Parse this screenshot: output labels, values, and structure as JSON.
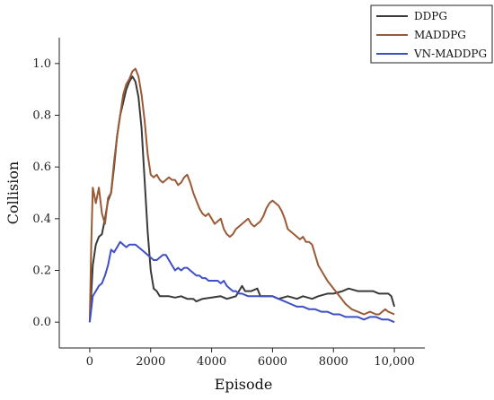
{
  "chart_data": {
    "type": "line",
    "xlabel": "Episode",
    "ylabel": "Collision",
    "xlim": [
      -1000,
      11000
    ],
    "ylim": [
      -0.1,
      1.1
    ],
    "x_ticks": [
      {
        "value": 0,
        "label": "0"
      },
      {
        "value": 2000,
        "label": "2000"
      },
      {
        "value": 4000,
        "label": "4000"
      },
      {
        "value": 6000,
        "label": "6000"
      },
      {
        "value": 8000,
        "label": "8000"
      },
      {
        "value": 10000,
        "label": "10,000"
      }
    ],
    "y_ticks": [
      {
        "value": 0.0,
        "label": "0.0"
      },
      {
        "value": 0.2,
        "label": "0.2"
      },
      {
        "value": 0.4,
        "label": "0.4"
      },
      {
        "value": 0.6,
        "label": "0.6"
      },
      {
        "value": 0.8,
        "label": "0.8"
      },
      {
        "value": 1.0,
        "label": "1.0"
      }
    ],
    "grid": false,
    "legend_position": "top-right",
    "series": [
      {
        "name": "DDPG",
        "color": "#3a3a3a",
        "points": [
          [
            0,
            0.0
          ],
          [
            100,
            0.22
          ],
          [
            200,
            0.3
          ],
          [
            300,
            0.33
          ],
          [
            400,
            0.34
          ],
          [
            500,
            0.4
          ],
          [
            600,
            0.47
          ],
          [
            700,
            0.5
          ],
          [
            800,
            0.6
          ],
          [
            900,
            0.72
          ],
          [
            1000,
            0.8
          ],
          [
            1100,
            0.85
          ],
          [
            1200,
            0.9
          ],
          [
            1300,
            0.93
          ],
          [
            1400,
            0.95
          ],
          [
            1500,
            0.93
          ],
          [
            1600,
            0.87
          ],
          [
            1700,
            0.75
          ],
          [
            1800,
            0.55
          ],
          [
            1900,
            0.35
          ],
          [
            2000,
            0.2
          ],
          [
            2100,
            0.13
          ],
          [
            2200,
            0.12
          ],
          [
            2300,
            0.1
          ],
          [
            2400,
            0.1
          ],
          [
            2600,
            0.1
          ],
          [
            2800,
            0.095
          ],
          [
            3000,
            0.1
          ],
          [
            3200,
            0.09
          ],
          [
            3400,
            0.09
          ],
          [
            3500,
            0.08
          ],
          [
            3700,
            0.09
          ],
          [
            4000,
            0.095
          ],
          [
            4300,
            0.1
          ],
          [
            4500,
            0.09
          ],
          [
            4800,
            0.1
          ],
          [
            5000,
            0.14
          ],
          [
            5100,
            0.12
          ],
          [
            5300,
            0.12
          ],
          [
            5500,
            0.13
          ],
          [
            5600,
            0.1
          ],
          [
            5800,
            0.1
          ],
          [
            6000,
            0.1
          ],
          [
            6200,
            0.09
          ],
          [
            6500,
            0.1
          ],
          [
            6800,
            0.09
          ],
          [
            7000,
            0.1
          ],
          [
            7300,
            0.09
          ],
          [
            7500,
            0.1
          ],
          [
            7800,
            0.11
          ],
          [
            8000,
            0.11
          ],
          [
            8300,
            0.12
          ],
          [
            8500,
            0.13
          ],
          [
            8800,
            0.12
          ],
          [
            9000,
            0.12
          ],
          [
            9300,
            0.12
          ],
          [
            9500,
            0.11
          ],
          [
            9800,
            0.11
          ],
          [
            9900,
            0.1
          ],
          [
            10000,
            0.06
          ]
        ]
      },
      {
        "name": "MADDPG",
        "color": "#9a5a36",
        "points": [
          [
            0,
            0.0
          ],
          [
            50,
            0.3
          ],
          [
            100,
            0.52
          ],
          [
            200,
            0.46
          ],
          [
            300,
            0.52
          ],
          [
            400,
            0.42
          ],
          [
            500,
            0.38
          ],
          [
            600,
            0.48
          ],
          [
            700,
            0.5
          ],
          [
            800,
            0.62
          ],
          [
            900,
            0.72
          ],
          [
            1000,
            0.8
          ],
          [
            1100,
            0.88
          ],
          [
            1200,
            0.92
          ],
          [
            1300,
            0.94
          ],
          [
            1400,
            0.97
          ],
          [
            1500,
            0.98
          ],
          [
            1600,
            0.95
          ],
          [
            1700,
            0.88
          ],
          [
            1800,
            0.78
          ],
          [
            1900,
            0.65
          ],
          [
            2000,
            0.57
          ],
          [
            2100,
            0.56
          ],
          [
            2200,
            0.57
          ],
          [
            2300,
            0.55
          ],
          [
            2400,
            0.54
          ],
          [
            2500,
            0.55
          ],
          [
            2600,
            0.56
          ],
          [
            2700,
            0.55
          ],
          [
            2800,
            0.55
          ],
          [
            2900,
            0.53
          ],
          [
            3000,
            0.54
          ],
          [
            3100,
            0.56
          ],
          [
            3200,
            0.57
          ],
          [
            3300,
            0.54
          ],
          [
            3400,
            0.5
          ],
          [
            3500,
            0.47
          ],
          [
            3600,
            0.44
          ],
          [
            3700,
            0.42
          ],
          [
            3800,
            0.41
          ],
          [
            3900,
            0.42
          ],
          [
            4000,
            0.4
          ],
          [
            4100,
            0.38
          ],
          [
            4200,
            0.39
          ],
          [
            4300,
            0.4
          ],
          [
            4400,
            0.36
          ],
          [
            4500,
            0.34
          ],
          [
            4600,
            0.33
          ],
          [
            4700,
            0.34
          ],
          [
            4800,
            0.36
          ],
          [
            4900,
            0.37
          ],
          [
            5000,
            0.38
          ],
          [
            5100,
            0.39
          ],
          [
            5200,
            0.4
          ],
          [
            5300,
            0.38
          ],
          [
            5400,
            0.37
          ],
          [
            5500,
            0.38
          ],
          [
            5600,
            0.39
          ],
          [
            5700,
            0.41
          ],
          [
            5800,
            0.44
          ],
          [
            5900,
            0.46
          ],
          [
            6000,
            0.47
          ],
          [
            6100,
            0.46
          ],
          [
            6200,
            0.45
          ],
          [
            6300,
            0.43
          ],
          [
            6400,
            0.4
          ],
          [
            6500,
            0.36
          ],
          [
            6600,
            0.35
          ],
          [
            6700,
            0.34
          ],
          [
            6800,
            0.33
          ],
          [
            6900,
            0.32
          ],
          [
            7000,
            0.33
          ],
          [
            7100,
            0.31
          ],
          [
            7200,
            0.31
          ],
          [
            7300,
            0.3
          ],
          [
            7400,
            0.26
          ],
          [
            7500,
            0.22
          ],
          [
            7600,
            0.2
          ],
          [
            7700,
            0.18
          ],
          [
            7800,
            0.16
          ],
          [
            8000,
            0.13
          ],
          [
            8200,
            0.1
          ],
          [
            8400,
            0.07
          ],
          [
            8600,
            0.05
          ],
          [
            8800,
            0.04
          ],
          [
            9000,
            0.03
          ],
          [
            9200,
            0.04
          ],
          [
            9400,
            0.03
          ],
          [
            9500,
            0.03
          ],
          [
            9700,
            0.05
          ],
          [
            9800,
            0.04
          ],
          [
            10000,
            0.03
          ]
        ]
      },
      {
        "name": "VN-MADDPG",
        "color": "#3f4fc4",
        "points": [
          [
            0,
            0.0
          ],
          [
            100,
            0.1
          ],
          [
            200,
            0.12
          ],
          [
            300,
            0.14
          ],
          [
            400,
            0.15
          ],
          [
            500,
            0.18
          ],
          [
            600,
            0.22
          ],
          [
            700,
            0.28
          ],
          [
            800,
            0.27
          ],
          [
            900,
            0.29
          ],
          [
            1000,
            0.31
          ],
          [
            1100,
            0.3
          ],
          [
            1200,
            0.29
          ],
          [
            1300,
            0.3
          ],
          [
            1400,
            0.3
          ],
          [
            1500,
            0.3
          ],
          [
            1600,
            0.29
          ],
          [
            1700,
            0.28
          ],
          [
            1800,
            0.27
          ],
          [
            1900,
            0.26
          ],
          [
            2000,
            0.25
          ],
          [
            2100,
            0.24
          ],
          [
            2200,
            0.24
          ],
          [
            2300,
            0.25
          ],
          [
            2400,
            0.26
          ],
          [
            2500,
            0.26
          ],
          [
            2600,
            0.24
          ],
          [
            2700,
            0.22
          ],
          [
            2800,
            0.2
          ],
          [
            2900,
            0.21
          ],
          [
            3000,
            0.2
          ],
          [
            3100,
            0.21
          ],
          [
            3200,
            0.21
          ],
          [
            3300,
            0.2
          ],
          [
            3400,
            0.19
          ],
          [
            3500,
            0.18
          ],
          [
            3600,
            0.18
          ],
          [
            3700,
            0.17
          ],
          [
            3800,
            0.17
          ],
          [
            3900,
            0.16
          ],
          [
            4000,
            0.16
          ],
          [
            4100,
            0.16
          ],
          [
            4200,
            0.16
          ],
          [
            4300,
            0.15
          ],
          [
            4400,
            0.16
          ],
          [
            4500,
            0.14
          ],
          [
            4600,
            0.13
          ],
          [
            4700,
            0.12
          ],
          [
            4800,
            0.12
          ],
          [
            4900,
            0.11
          ],
          [
            5000,
            0.11
          ],
          [
            5200,
            0.1
          ],
          [
            5400,
            0.1
          ],
          [
            5600,
            0.1
          ],
          [
            5800,
            0.1
          ],
          [
            6000,
            0.1
          ],
          [
            6200,
            0.09
          ],
          [
            6400,
            0.08
          ],
          [
            6600,
            0.07
          ],
          [
            6800,
            0.06
          ],
          [
            7000,
            0.06
          ],
          [
            7200,
            0.05
          ],
          [
            7400,
            0.05
          ],
          [
            7600,
            0.04
          ],
          [
            7800,
            0.04
          ],
          [
            8000,
            0.03
          ],
          [
            8200,
            0.03
          ],
          [
            8400,
            0.02
          ],
          [
            8600,
            0.02
          ],
          [
            8800,
            0.02
          ],
          [
            9000,
            0.01
          ],
          [
            9200,
            0.02
          ],
          [
            9400,
            0.02
          ],
          [
            9600,
            0.01
          ],
          [
            9800,
            0.01
          ],
          [
            10000,
            0.0
          ]
        ]
      }
    ]
  }
}
